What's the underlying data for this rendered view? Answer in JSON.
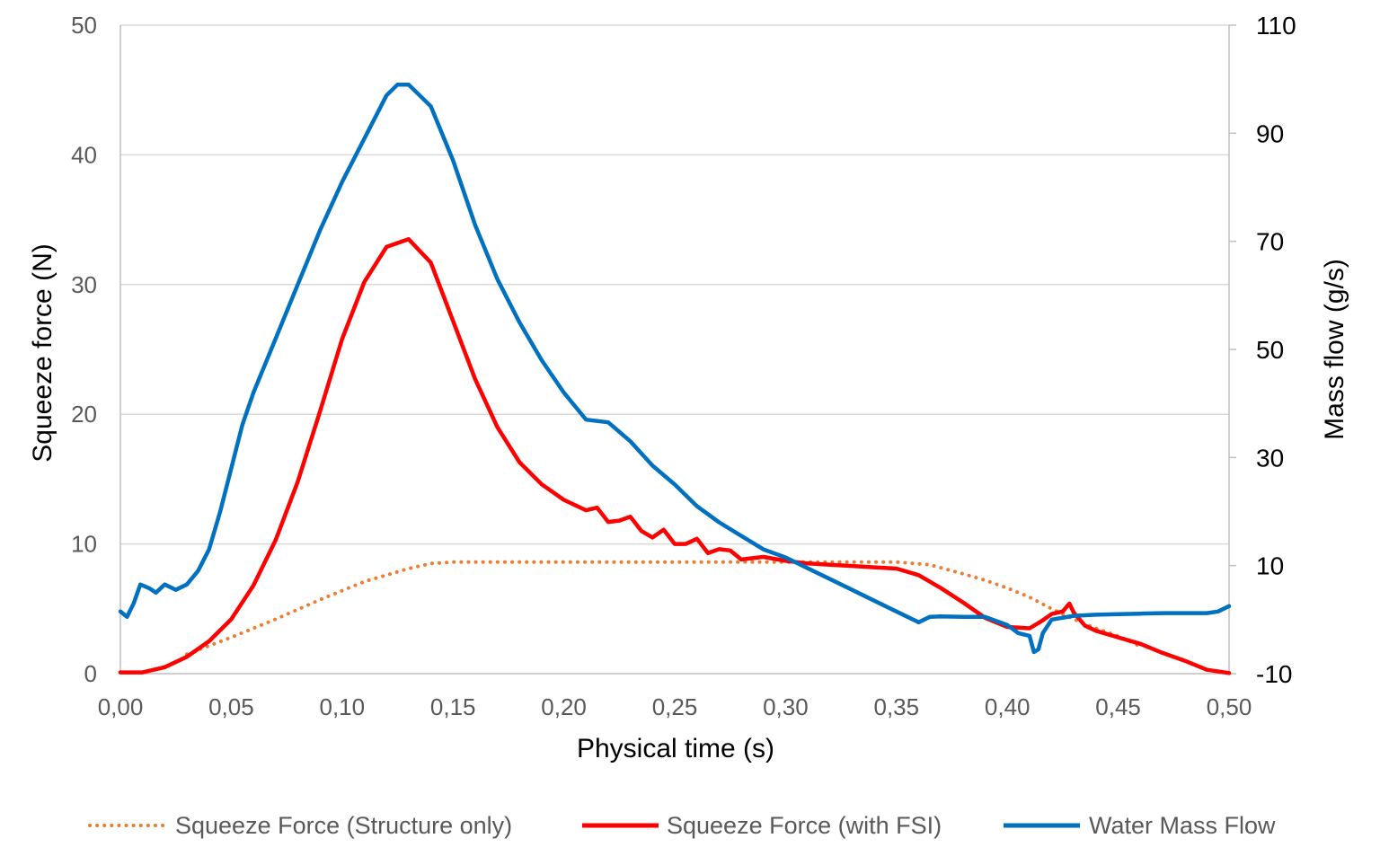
{
  "chart_data": {
    "type": "line",
    "title": "",
    "xlabel": "Physical time (s)",
    "ylabel_left": "Squeeze force (N)",
    "ylabel_right": "Mass flow (g/s)",
    "xlim": [
      0,
      0.5
    ],
    "ylim_left": [
      0,
      50
    ],
    "ylim_right": [
      -10,
      110
    ],
    "x_ticks": [
      "0,00",
      "0,05",
      "0,10",
      "0,15",
      "0,20",
      "0,25",
      "0,30",
      "0,35",
      "0,40",
      "0,45",
      "0,50"
    ],
    "y_left_ticks": [
      "0",
      "10",
      "20",
      "30",
      "40",
      "50"
    ],
    "y_right_ticks": [
      "-10",
      "10",
      "30",
      "50",
      "70",
      "90",
      "110"
    ],
    "grid": true,
    "legend_position": "bottom",
    "series": [
      {
        "name": "Squeeze Force (Structure only)",
        "axis": "left",
        "color": "#ED7D31",
        "style": "dotted",
        "points": [
          [
            0.03,
            1.5
          ],
          [
            0.05,
            2.8
          ],
          [
            0.07,
            4.2
          ],
          [
            0.09,
            5.7
          ],
          [
            0.11,
            7.1
          ],
          [
            0.13,
            8.1
          ],
          [
            0.14,
            8.5
          ],
          [
            0.15,
            8.6
          ],
          [
            0.2,
            8.6
          ],
          [
            0.25,
            8.6
          ],
          [
            0.3,
            8.6
          ],
          [
            0.35,
            8.6
          ],
          [
            0.365,
            8.4
          ],
          [
            0.38,
            7.7
          ],
          [
            0.39,
            7.2
          ],
          [
            0.4,
            6.6
          ],
          [
            0.41,
            5.9
          ],
          [
            0.42,
            5.0
          ],
          [
            0.43,
            4.2
          ],
          [
            0.44,
            3.5
          ],
          [
            0.45,
            2.9
          ],
          [
            0.46,
            2.1
          ]
        ]
      },
      {
        "name": "Squeeze Force (with FSI)",
        "axis": "left",
        "color": "#FF0000",
        "style": "solid",
        "points": [
          [
            0,
            0.1
          ],
          [
            0.01,
            0.1
          ],
          [
            0.02,
            0.5
          ],
          [
            0.03,
            1.3
          ],
          [
            0.04,
            2.5
          ],
          [
            0.05,
            4.2
          ],
          [
            0.06,
            6.8
          ],
          [
            0.07,
            10.3
          ],
          [
            0.08,
            14.8
          ],
          [
            0.09,
            20.2
          ],
          [
            0.1,
            25.8
          ],
          [
            0.11,
            30.2
          ],
          [
            0.12,
            32.9
          ],
          [
            0.13,
            33.5
          ],
          [
            0.14,
            31.7
          ],
          [
            0.15,
            27.2
          ],
          [
            0.16,
            22.7
          ],
          [
            0.17,
            19.0
          ],
          [
            0.18,
            16.3
          ],
          [
            0.19,
            14.6
          ],
          [
            0.2,
            13.4
          ],
          [
            0.21,
            12.6
          ],
          [
            0.215,
            12.8
          ],
          [
            0.22,
            11.7
          ],
          [
            0.225,
            11.8
          ],
          [
            0.23,
            12.1
          ],
          [
            0.235,
            11.0
          ],
          [
            0.24,
            10.5
          ],
          [
            0.245,
            11.1
          ],
          [
            0.25,
            10.0
          ],
          [
            0.255,
            10.0
          ],
          [
            0.26,
            10.4
          ],
          [
            0.265,
            9.3
          ],
          [
            0.27,
            9.6
          ],
          [
            0.275,
            9.5
          ],
          [
            0.28,
            8.8
          ],
          [
            0.29,
            9.0
          ],
          [
            0.3,
            8.7
          ],
          [
            0.31,
            8.5
          ],
          [
            0.32,
            8.4
          ],
          [
            0.33,
            8.3
          ],
          [
            0.34,
            8.2
          ],
          [
            0.35,
            8.1
          ],
          [
            0.36,
            7.6
          ],
          [
            0.37,
            6.6
          ],
          [
            0.38,
            5.5
          ],
          [
            0.39,
            4.3
          ],
          [
            0.4,
            3.6
          ],
          [
            0.41,
            3.5
          ],
          [
            0.415,
            4.0
          ],
          [
            0.42,
            4.6
          ],
          [
            0.425,
            4.8
          ],
          [
            0.428,
            5.4
          ],
          [
            0.43,
            4.7
          ],
          [
            0.435,
            3.7
          ],
          [
            0.44,
            3.3
          ],
          [
            0.45,
            2.8
          ],
          [
            0.46,
            2.3
          ],
          [
            0.47,
            1.6
          ],
          [
            0.48,
            1.0
          ],
          [
            0.49,
            0.3
          ],
          [
            0.5,
            0.05
          ]
        ]
      },
      {
        "name": "Water Mass Flow",
        "axis": "right",
        "color": "#0070C0",
        "style": "solid",
        "points": [
          [
            0,
            1.5
          ],
          [
            0.003,
            0.5
          ],
          [
            0.006,
            3.0
          ],
          [
            0.009,
            6.5
          ],
          [
            0.013,
            5.8
          ],
          [
            0.016,
            5.0
          ],
          [
            0.02,
            6.5
          ],
          [
            0.025,
            5.5
          ],
          [
            0.03,
            6.5
          ],
          [
            0.035,
            9.0
          ],
          [
            0.04,
            13.0
          ],
          [
            0.045,
            20.0
          ],
          [
            0.05,
            28.0
          ],
          [
            0.055,
            36.0
          ],
          [
            0.06,
            42.0
          ],
          [
            0.07,
            52.0
          ],
          [
            0.08,
            62.0
          ],
          [
            0.09,
            72.0
          ],
          [
            0.1,
            81.0
          ],
          [
            0.11,
            89.0
          ],
          [
            0.12,
            97.0
          ],
          [
            0.125,
            99.0
          ],
          [
            0.13,
            99.0
          ],
          [
            0.14,
            95.0
          ],
          [
            0.15,
            85.0
          ],
          [
            0.16,
            73.0
          ],
          [
            0.17,
            63.0
          ],
          [
            0.18,
            55.0
          ],
          [
            0.19,
            48.0
          ],
          [
            0.2,
            42.0
          ],
          [
            0.21,
            37.0
          ],
          [
            0.22,
            36.5
          ],
          [
            0.23,
            33.0
          ],
          [
            0.24,
            28.5
          ],
          [
            0.25,
            25.0
          ],
          [
            0.26,
            21.0
          ],
          [
            0.27,
            18.0
          ],
          [
            0.28,
            15.5
          ],
          [
            0.29,
            13.0
          ],
          [
            0.3,
            11.5
          ],
          [
            0.31,
            9.5
          ],
          [
            0.32,
            7.5
          ],
          [
            0.33,
            5.5
          ],
          [
            0.34,
            3.5
          ],
          [
            0.35,
            1.5
          ],
          [
            0.355,
            0.5
          ],
          [
            0.36,
            -0.5
          ],
          [
            0.365,
            0.5
          ],
          [
            0.37,
            0.6
          ],
          [
            0.38,
            0.5
          ],
          [
            0.39,
            0.5
          ],
          [
            0.4,
            -1.0
          ],
          [
            0.405,
            -2.5
          ],
          [
            0.41,
            -3.0
          ],
          [
            0.412,
            -6.0
          ],
          [
            0.414,
            -5.5
          ],
          [
            0.416,
            -2.5
          ],
          [
            0.42,
            0.0
          ],
          [
            0.43,
            0.7
          ],
          [
            0.44,
            0.9
          ],
          [
            0.45,
            1.0
          ],
          [
            0.46,
            1.1
          ],
          [
            0.47,
            1.2
          ],
          [
            0.48,
            1.2
          ],
          [
            0.49,
            1.2
          ],
          [
            0.495,
            1.5
          ],
          [
            0.5,
            2.5
          ]
        ]
      }
    ]
  }
}
